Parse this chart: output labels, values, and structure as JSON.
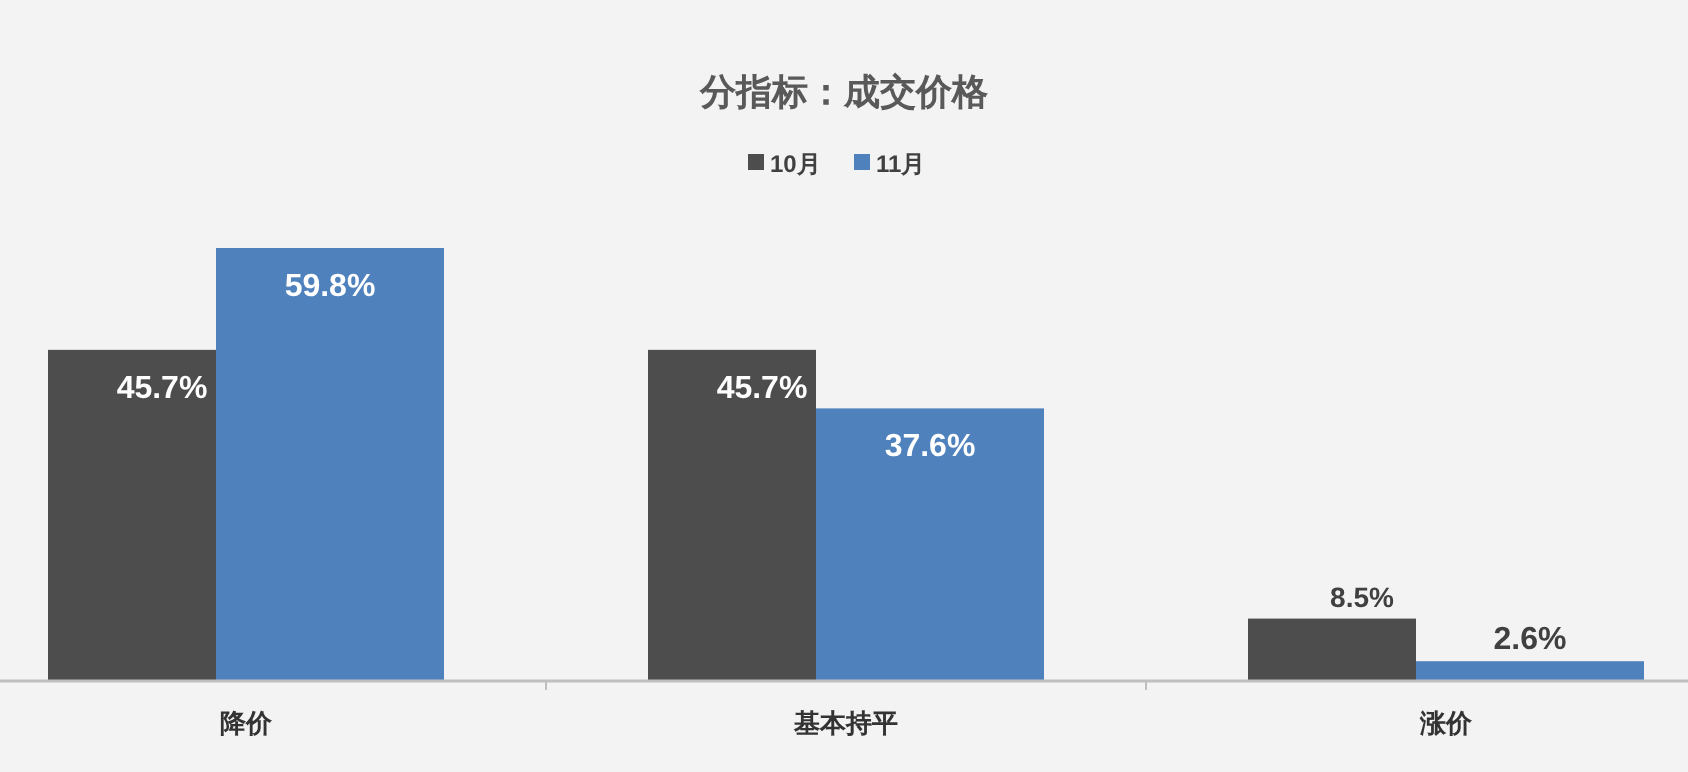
{
  "chart_data": {
    "type": "bar",
    "title": "分指标：成交价格",
    "categories": [
      "降价",
      "基本持平",
      "涨价"
    ],
    "series": [
      {
        "name": "10月",
        "color": "#4d4d4d",
        "values": [
          45.7,
          45.7,
          8.5
        ],
        "value_labels": [
          "45.7%",
          "45.7%",
          "8.5%"
        ]
      },
      {
        "name": "11月",
        "color": "#4f81bd",
        "values": [
          59.8,
          37.6,
          2.6
        ],
        "value_labels": [
          "59.8%",
          "37.6%",
          "2.6%"
        ]
      }
    ],
    "legend": "top",
    "grid": false
  }
}
